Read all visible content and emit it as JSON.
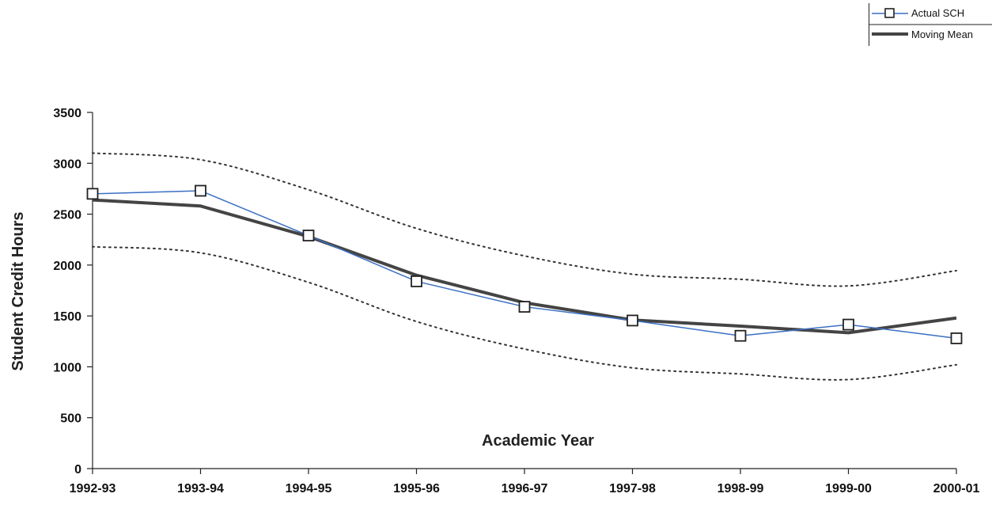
{
  "chart_data": {
    "type": "line",
    "title": "",
    "xlabel": "Academic Year",
    "ylabel": "Student Credit Hours",
    "categories": [
      "1992-93",
      "1993-94",
      "1994-95",
      "1995-96",
      "1996-97",
      "1997-98",
      "1998-99",
      "1999-00",
      "2000-01"
    ],
    "yticks": [
      "0",
      "500",
      "1000",
      "1500",
      "2000",
      "2500",
      "3000",
      "3500"
    ],
    "ylim": [
      0,
      3500
    ],
    "grid": false,
    "legend_position": "top-right",
    "series": [
      {
        "name": "Actual SCH",
        "color": "#3b6fc4",
        "marker": "open-square",
        "values": [
          2700,
          2730,
          2290,
          1840,
          1590,
          1455,
          1305,
          1415,
          1280
        ]
      },
      {
        "name": "Moving Mean",
        "color": "#444444",
        "marker": "none",
        "values": [
          2640,
          2580,
          2280,
          1900,
          1630,
          1460,
          1400,
          1335,
          1480
        ]
      },
      {
        "color": "#333333",
        "style": "dotted",
        "marker": "none",
        "values": [
          3100,
          3035,
          2740,
          2360,
          2090,
          1910,
          1860,
          1795,
          1945
        ]
      },
      {
        "color": "#333333",
        "style": "dotted",
        "marker": "none",
        "values": [
          2180,
          2120,
          1830,
          1445,
          1175,
          990,
          930,
          875,
          1020
        ]
      }
    ]
  }
}
